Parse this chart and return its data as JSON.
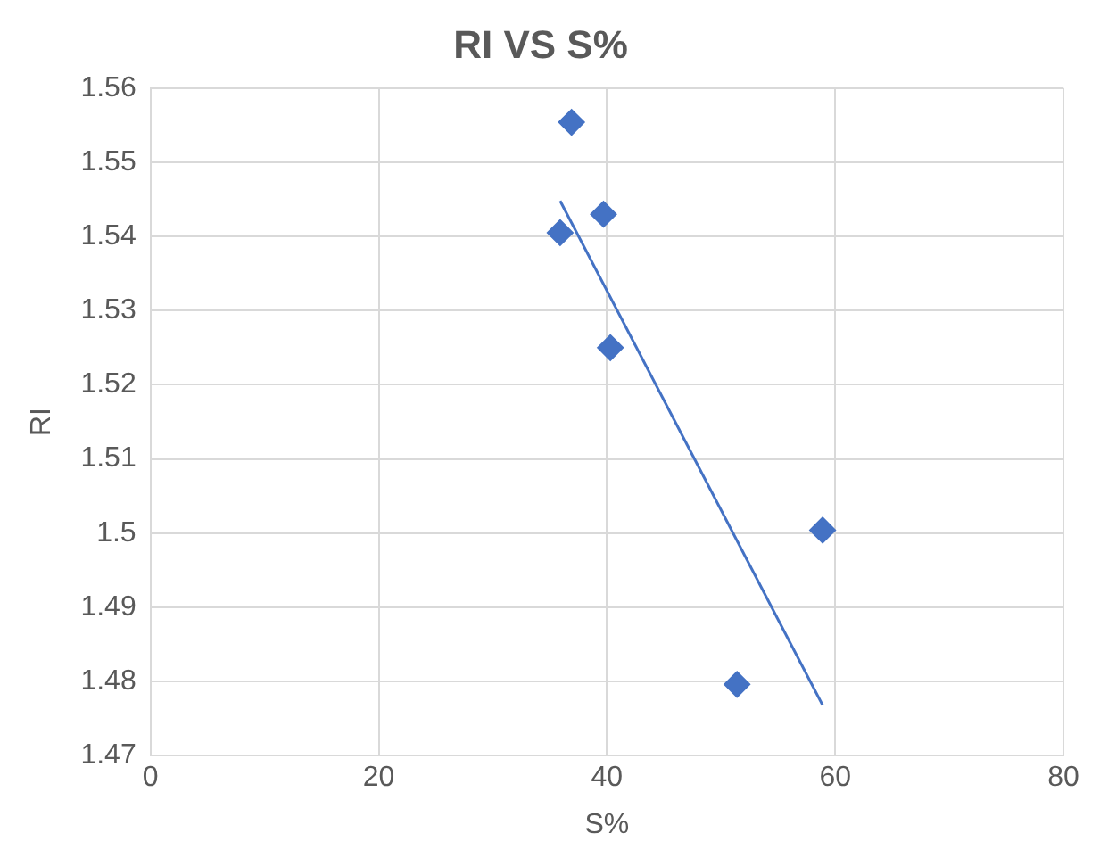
{
  "chart_data": {
    "type": "scatter",
    "title": "RI VS S%",
    "xlabel": "S%",
    "ylabel": "RI",
    "xlim": [
      0,
      80
    ],
    "xticks": [
      0,
      20,
      40,
      60,
      80
    ],
    "ylim": [
      1.47,
      1.56
    ],
    "yticks": [
      1.47,
      1.48,
      1.49,
      1.5,
      1.51,
      1.52,
      1.53,
      1.54,
      1.55,
      1.56
    ],
    "grid": true,
    "legend": false,
    "series": [
      {
        "marker": "diamond",
        "color": "#4472c4",
        "x": [
          36.9,
          35.9,
          39.7,
          40.3,
          58.9,
          51.4
        ],
        "values": [
          1.5554,
          1.5405,
          1.543,
          1.525,
          1.5004,
          1.4796
        ]
      },
      {
        "type": "line",
        "marker": "none",
        "color": "#4472c4",
        "x": [
          35.9,
          58.9
        ],
        "values": [
          1.5448,
          1.4768
        ]
      }
    ]
  }
}
